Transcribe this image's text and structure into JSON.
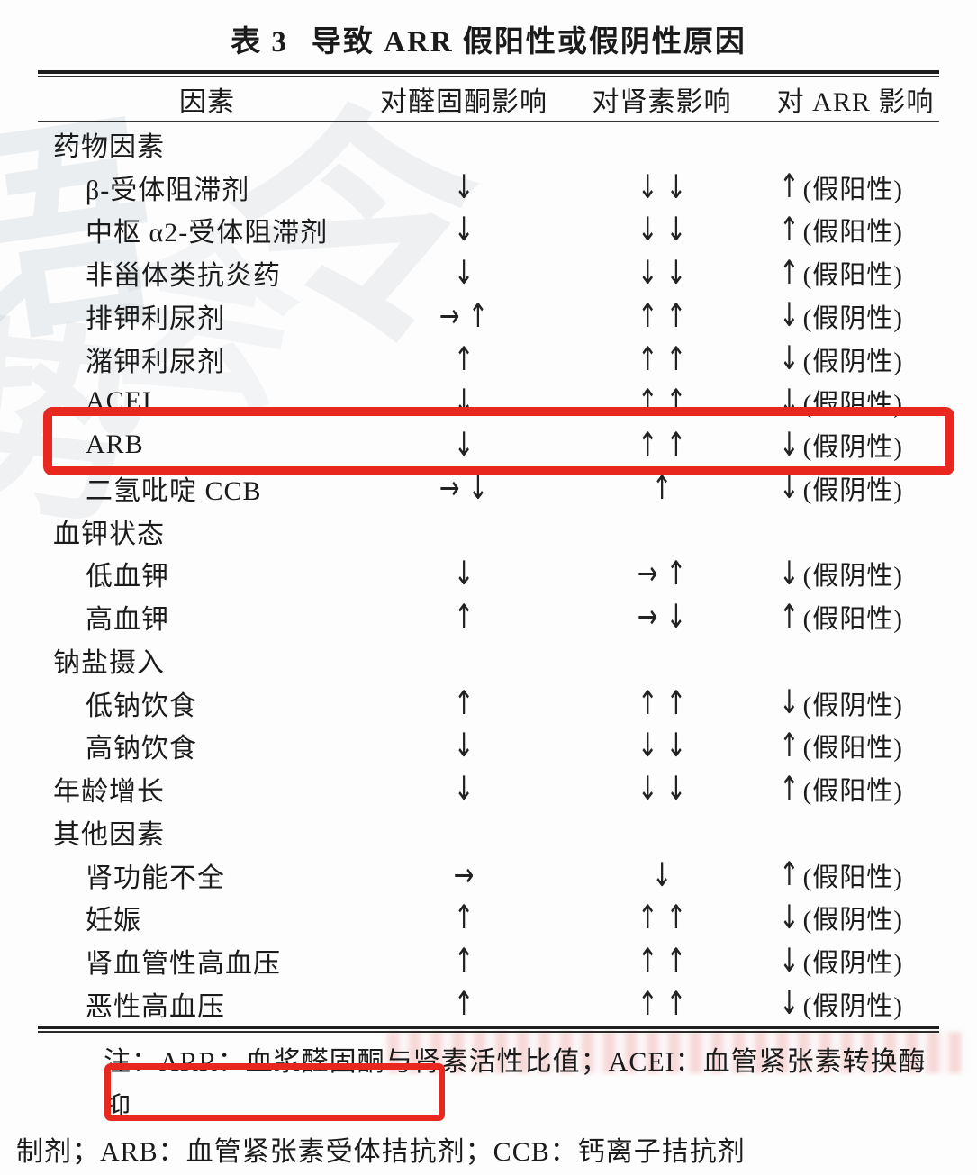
{
  "page": {
    "title_label": "表 3",
    "title_text": "导致 ARR 假阳性或假阴性原因"
  },
  "table": {
    "headers": [
      "因素",
      "对醛固酮影响",
      "对肾素影响",
      "对 ARR 影响"
    ],
    "rows": [
      {
        "label": "药物因素",
        "indent": 0,
        "aldosterone": "",
        "renin": "",
        "arr_arrow": "",
        "arr_text": "",
        "highlight": false
      },
      {
        "label": "β-受体阻滞剂",
        "indent": 1,
        "aldosterone": "↓",
        "renin": "↓↓",
        "arr_arrow": "↑",
        "arr_text": "(假阳性)",
        "highlight": false
      },
      {
        "label": "中枢 α2-受体阻滞剂",
        "indent": 1,
        "aldosterone": "↓",
        "renin": "↓↓",
        "arr_arrow": "↑",
        "arr_text": "(假阳性)",
        "highlight": false
      },
      {
        "label": "非甾体类抗炎药",
        "indent": 1,
        "aldosterone": "↓",
        "renin": "↓↓",
        "arr_arrow": "↑",
        "arr_text": "(假阳性)",
        "highlight": false
      },
      {
        "label": "排钾利尿剂",
        "indent": 1,
        "aldosterone": "→↑",
        "renin": "↑↑",
        "arr_arrow": "↓",
        "arr_text": "(假阴性)",
        "highlight": false
      },
      {
        "label": "潴钾利尿剂",
        "indent": 1,
        "aldosterone": "↑",
        "renin": "↑↑",
        "arr_arrow": "↓",
        "arr_text": "(假阴性)",
        "highlight": false
      },
      {
        "label": "ACEI",
        "indent": 1,
        "aldosterone": "↓",
        "renin": "↑↑",
        "arr_arrow": "↓",
        "arr_text": "(假阴性)",
        "highlight": false
      },
      {
        "label": "ARB",
        "indent": 1,
        "aldosterone": "↓",
        "renin": "↑↑",
        "arr_arrow": "↓",
        "arr_text": "(假阴性)",
        "highlight": true
      },
      {
        "label": "二氢吡啶 CCB",
        "indent": 1,
        "aldosterone": "→↓",
        "renin": "↑",
        "arr_arrow": "↓",
        "arr_text": "(假阴性)",
        "highlight": false
      },
      {
        "label": "血钾状态",
        "indent": 0,
        "aldosterone": "",
        "renin": "",
        "arr_arrow": "",
        "arr_text": "",
        "highlight": false
      },
      {
        "label": "低血钾",
        "indent": 1,
        "aldosterone": "↓",
        "renin": "→↑",
        "arr_arrow": "↓",
        "arr_text": "(假阴性)",
        "highlight": false
      },
      {
        "label": "高血钾",
        "indent": 1,
        "aldosterone": "↑",
        "renin": "→↓",
        "arr_arrow": "↑",
        "arr_text": "(假阳性)",
        "highlight": false
      },
      {
        "label": "钠盐摄入",
        "indent": 0,
        "aldosterone": "",
        "renin": "",
        "arr_arrow": "",
        "arr_text": "",
        "highlight": false
      },
      {
        "label": "低钠饮食",
        "indent": 1,
        "aldosterone": "↑",
        "renin": "↑↑",
        "arr_arrow": "↓",
        "arr_text": "(假阴性)",
        "highlight": false
      },
      {
        "label": "高钠饮食",
        "indent": 1,
        "aldosterone": "↓",
        "renin": "↓↓",
        "arr_arrow": "↑",
        "arr_text": "(假阳性)",
        "highlight": false
      },
      {
        "label": "年龄增长",
        "indent": 0,
        "aldosterone": "↓",
        "renin": "↓↓",
        "arr_arrow": "↑",
        "arr_text": "(假阳性)",
        "highlight": false
      },
      {
        "label": "其他因素",
        "indent": 0,
        "aldosterone": "",
        "renin": "",
        "arr_arrow": "",
        "arr_text": "",
        "highlight": false
      },
      {
        "label": "肾功能不全",
        "indent": 1,
        "aldosterone": "→",
        "renin": "↓",
        "arr_arrow": "↑",
        "arr_text": "(假阳性)",
        "highlight": false
      },
      {
        "label": "妊娠",
        "indent": 1,
        "aldosterone": "↑",
        "renin": "↑↑",
        "arr_arrow": "↓",
        "arr_text": "(假阴性)",
        "highlight": false
      },
      {
        "label": "肾血管性高血压",
        "indent": 1,
        "aldosterone": "↑",
        "renin": "↑↑",
        "arr_arrow": "↓",
        "arr_text": "(假阴性)",
        "highlight": false
      },
      {
        "label": "恶性高血压",
        "indent": 1,
        "aldosterone": "↑",
        "renin": "↑↑",
        "arr_arrow": "↓",
        "arr_text": "(假阴性)",
        "highlight": false
      }
    ]
  },
  "note": {
    "line1": "注：ARR：血浆醛固酮与肾素活性比值；ACEI：血管紧张素转换酶抑",
    "line2": "制剂；ARB：血管紧张素受体拮抗剂；CCB：钙离子拮抗剂"
  },
  "annotations": {
    "highlight_color": "#e8281e",
    "highlighted_row": "ARB",
    "highlighted_note_segment": "ARB：血管紧张素受体拮抗剂"
  },
  "watermark": {
    "glyphs": [
      "语",
      "势",
      "令",
      "会"
    ]
  }
}
